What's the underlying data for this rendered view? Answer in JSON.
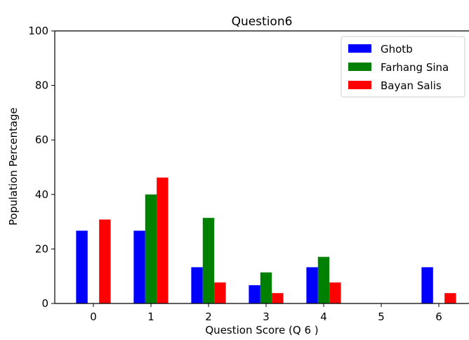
{
  "chart_data": {
    "type": "bar",
    "title": "Question6",
    "xlabel": "Question Score (Q 6 )",
    "ylabel": "Population Percentage",
    "categories": [
      "0",
      "1",
      "2",
      "3",
      "4",
      "5",
      "6"
    ],
    "yticks": [
      "0",
      "20",
      "40",
      "60",
      "80",
      "100"
    ],
    "ylim": [
      0,
      100
    ],
    "grid": false,
    "legend_position": "top-right",
    "series": [
      {
        "name": "Ghotb",
        "color": "#0000ff",
        "values": [
          26.7,
          26.7,
          13.3,
          6.7,
          13.3,
          0,
          13.3
        ]
      },
      {
        "name": "Farhang Sina",
        "color": "#008000",
        "values": [
          0,
          40.0,
          31.4,
          11.4,
          17.1,
          0,
          0
        ]
      },
      {
        "name": "Bayan Salis",
        "color": "#ff0000",
        "values": [
          30.8,
          46.2,
          7.7,
          3.8,
          7.7,
          0,
          3.8
        ]
      }
    ]
  }
}
